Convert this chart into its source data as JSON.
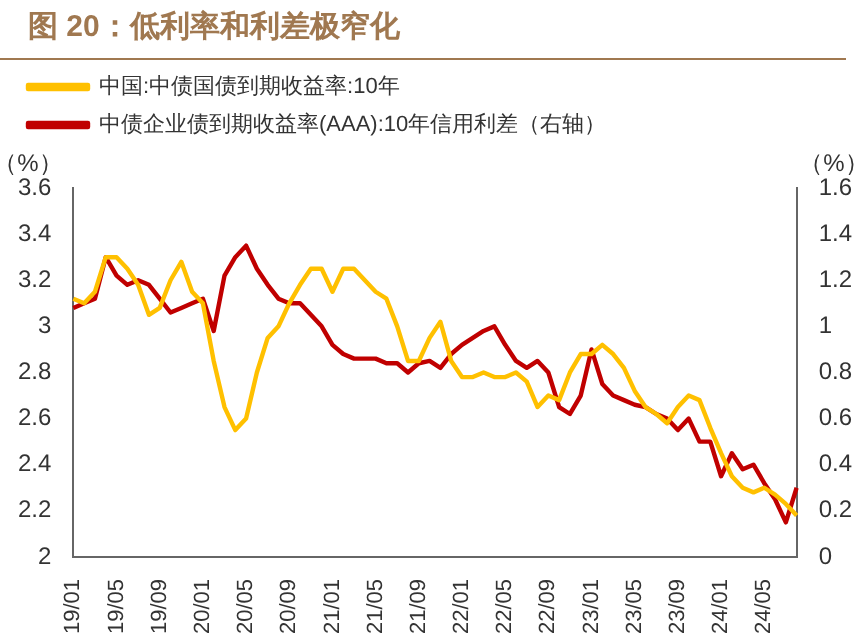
{
  "chart_data": {
    "type": "line",
    "title": "图 20：低利率和利差极窄化",
    "ylabel": "（%）",
    "y2label": "（%）",
    "categories": [
      "19/01",
      null,
      null,
      null,
      "19/05",
      null,
      null,
      null,
      "19/09",
      null,
      null,
      null,
      "20/01",
      null,
      null,
      null,
      "20/05",
      null,
      null,
      null,
      "20/09",
      null,
      null,
      null,
      "21/01",
      null,
      null,
      null,
      "21/05",
      null,
      null,
      null,
      "21/09",
      null,
      null,
      null,
      "22/01",
      null,
      null,
      null,
      "22/05",
      null,
      null,
      null,
      "22/09",
      null,
      null,
      null,
      "23/01",
      null,
      null,
      null,
      "23/05",
      null,
      null,
      null,
      "23/09",
      null,
      null,
      null,
      "24/01",
      null,
      null,
      null,
      "24/05",
      null,
      null,
      null
    ],
    "series": [
      {
        "name": "中国:中债国债到期收益率:10年",
        "color": "#ffc000",
        "values": [
          3.12,
          3.1,
          3.15,
          3.3,
          3.3,
          3.25,
          3.18,
          3.05,
          3.08,
          3.2,
          3.28,
          3.15,
          3.1,
          2.85,
          2.65,
          2.55,
          2.6,
          2.8,
          2.95,
          3.0,
          3.1,
          3.18,
          3.25,
          3.25,
          3.15,
          3.25,
          3.25,
          3.2,
          3.15,
          3.12,
          3.0,
          2.85,
          2.85,
          2.95,
          3.02,
          2.85,
          2.78,
          2.78,
          2.8,
          2.78,
          2.78,
          2.8,
          2.76,
          2.65,
          2.7,
          2.68,
          2.8,
          2.88,
          2.88,
          2.92,
          2.88,
          2.82,
          2.72,
          2.65,
          2.62,
          2.58,
          2.65,
          2.7,
          2.68,
          2.56,
          2.45,
          2.35,
          2.3,
          2.28,
          2.3,
          2.27,
          2.23,
          2.18
        ]
      },
      {
        "name": "中债企业债到期收益率(AAA):10年信用利差（右轴）",
        "color": "#c00000",
        "axis": "y2",
        "values": [
          1.08,
          1.1,
          1.12,
          1.3,
          1.22,
          1.18,
          1.2,
          1.18,
          1.12,
          1.06,
          1.08,
          1.1,
          1.12,
          0.98,
          1.22,
          1.3,
          1.35,
          1.25,
          1.18,
          1.12,
          1.1,
          1.1,
          1.05,
          1.0,
          0.92,
          0.88,
          0.86,
          0.86,
          0.86,
          0.84,
          0.84,
          0.8,
          0.84,
          0.85,
          0.82,
          0.88,
          0.92,
          0.95,
          0.98,
          1.0,
          0.92,
          0.85,
          0.82,
          0.85,
          0.8,
          0.65,
          0.62,
          0.7,
          0.9,
          0.75,
          0.7,
          0.68,
          0.66,
          0.65,
          0.62,
          0.6,
          0.55,
          0.6,
          0.5,
          0.5,
          0.35,
          0.45,
          0.38,
          0.4,
          0.32,
          0.25,
          0.15,
          0.3
        ]
      }
    ],
    "ylim": [
      2.0,
      3.6
    ],
    "yticks": [
      2.0,
      2.2,
      2.4,
      2.6,
      2.8,
      3.0,
      3.2,
      3.4,
      3.6
    ],
    "y2lim": [
      0,
      1.6
    ],
    "y2ticks": [
      0,
      0.2,
      0.4,
      0.6,
      0.8,
      1,
      1.2,
      1.4,
      1.6
    ],
    "legend": "top",
    "grid": false,
    "marker": "none",
    "line_style": "solid"
  }
}
